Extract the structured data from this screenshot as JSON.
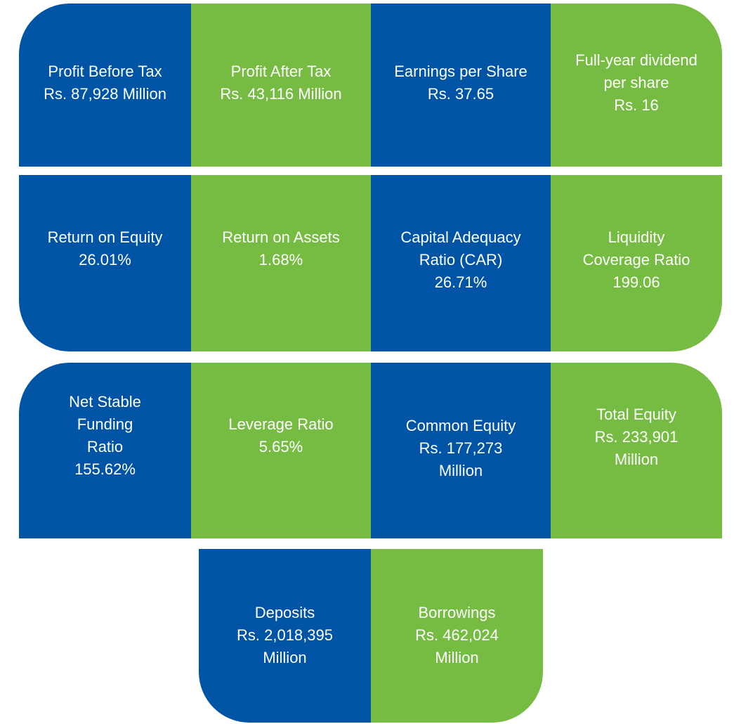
{
  "tiles": [
    {
      "lines": [
        "Profit Before Tax",
        "Rs. 87,928 Million"
      ]
    },
    {
      "lines": [
        "Profit After Tax",
        "Rs. 43,116 Million"
      ]
    },
    {
      "lines": [
        "Earnings per Share",
        "Rs. 37.65"
      ]
    },
    {
      "lines": [
        "Full-year dividend",
        "per share",
        "Rs. 16"
      ]
    },
    {
      "lines": [
        "Return on Equity",
        "26.01%"
      ]
    },
    {
      "lines": [
        "Return on Assets",
        "1.68%"
      ]
    },
    {
      "lines": [
        "Capital Adequacy",
        "Ratio (CAR)",
        "26.71%"
      ]
    },
    {
      "lines": [
        "Liquidity",
        "Coverage Ratio",
        "199.06"
      ]
    },
    {
      "lines": [
        "Net Stable",
        "Funding",
        "Ratio",
        "155.62%"
      ]
    },
    {
      "lines": [
        "Leverage Ratio",
        "5.65%"
      ]
    },
    {
      "lines": [
        "Common Equity",
        "Rs. 177,273",
        "Million"
      ]
    },
    {
      "lines": [
        "Total Equity",
        "Rs. 233,901",
        "Million"
      ]
    },
    {
      "lines": [
        "Deposits",
        "Rs. 2,018,395",
        "Million"
      ]
    },
    {
      "lines": [
        "Borrowings",
        "Rs. 462,024",
        "Million"
      ]
    }
  ]
}
